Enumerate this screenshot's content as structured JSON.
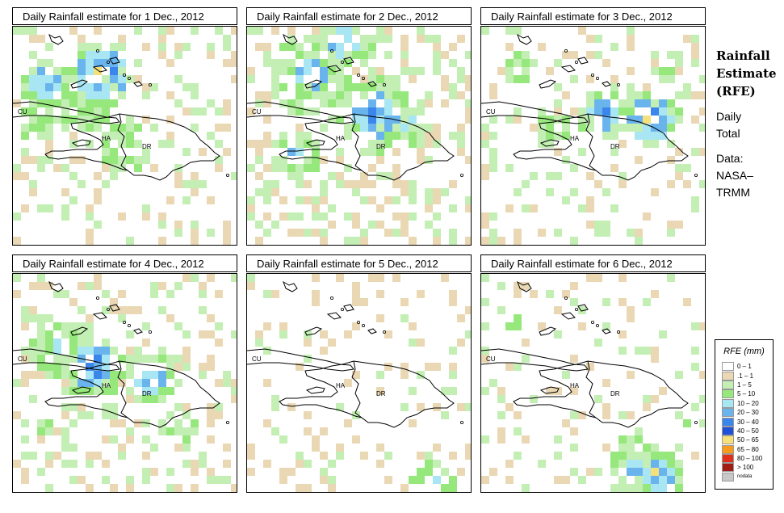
{
  "panels": [
    {
      "title": "Daily Rainfall estimate for  1 Dec., 2012",
      "seed": 11,
      "profile": "d1"
    },
    {
      "title": "Daily Rainfall estimate for  2 Dec., 2012",
      "seed": 23,
      "profile": "d2"
    },
    {
      "title": "Daily Rainfall estimate for  3 Dec., 2012",
      "seed": 37,
      "profile": "d3"
    },
    {
      "title": "Daily Rainfall estimate for  4 Dec., 2012",
      "seed": 41,
      "profile": "d4"
    },
    {
      "title": "Daily Rainfall estimate for  5 Dec., 2012",
      "seed": 53,
      "profile": "d5"
    },
    {
      "title": "Daily Rainfall estimate for  6 Dec., 2012",
      "seed": 67,
      "profile": "d6"
    }
  ],
  "map_labels": {
    "cuba": "CU",
    "haiti": "HA",
    "dominican_republic": "DR"
  },
  "title_block": {
    "heading_1": "Rainfall",
    "heading_2": "Estimate",
    "heading_3": "(RFE)",
    "sub_1": "Daily",
    "sub_2": "Total",
    "data_1": "Data:",
    "data_2": "NASA–",
    "data_3": "TRMM"
  },
  "legend": {
    "title": "RFE (mm)",
    "items": [
      {
        "label": "0 – 1",
        "color": "#ffffff"
      },
      {
        "label": ".1 – 1",
        "color": "#ead8b4"
      },
      {
        "label": "1 – 5",
        "color": "#c3efb4"
      },
      {
        "label": "5 – 10",
        "color": "#96e87c"
      },
      {
        "label": "10 – 20",
        "color": "#a8e6f3"
      },
      {
        "label": "20 – 30",
        "color": "#6ab4ee"
      },
      {
        "label": "30 – 40",
        "color": "#3a86ea"
      },
      {
        "label": "40 – 50",
        "color": "#1e50d8"
      },
      {
        "label": "50 – 65",
        "color": "#f5e07a"
      },
      {
        "label": "65 – 80",
        "color": "#f79a1e"
      },
      {
        "label": "80 – 100",
        "color": "#e0301c"
      },
      {
        "label": "> 100",
        "color": "#a01e14"
      },
      {
        "label": "nodata",
        "color": "#c8c8c8"
      }
    ]
  }
}
